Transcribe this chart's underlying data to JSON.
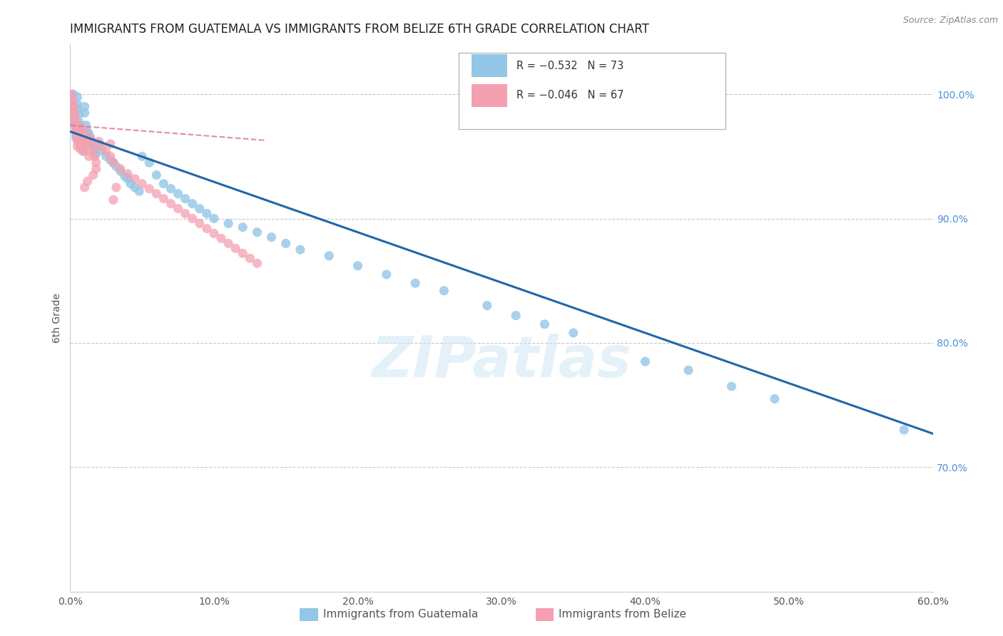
{
  "title": "IMMIGRANTS FROM GUATEMALA VS IMMIGRANTS FROM BELIZE 6TH GRADE CORRELATION CHART",
  "source": "Source: ZipAtlas.com",
  "ylabel": "6th Grade",
  "legend_blue_r": "R = −0.532",
  "legend_blue_n": "N = 73",
  "legend_pink_r": "R = −0.046",
  "legend_pink_n": "N = 67",
  "legend_blue_label": "Immigrants from Guatemala",
  "legend_pink_label": "Immigrants from Belize",
  "xlim": [
    0.0,
    0.6
  ],
  "ylim": [
    0.6,
    1.04
  ],
  "xticks": [
    0.0,
    0.1,
    0.2,
    0.3,
    0.4,
    0.5,
    0.6
  ],
  "yticks": [
    0.7,
    0.8,
    0.9,
    1.0
  ],
  "ytick_labels": [
    "70.0%",
    "80.0%",
    "90.0%",
    "100.0%"
  ],
  "xtick_labels": [
    "0.0%",
    "10.0%",
    "20.0%",
    "30.0%",
    "40.0%",
    "50.0%",
    "60.0%"
  ],
  "blue_color": "#94c6e7",
  "pink_color": "#f4a0b0",
  "blue_line_color": "#2166ac",
  "pink_line_color": "#d9728a",
  "right_tick_color": "#4a90d9",
  "watermark": "ZIPatlas",
  "blue_trend_x": [
    0.0,
    0.6
  ],
  "blue_trend_y": [
    0.97,
    0.727
  ],
  "pink_trend_x": [
    0.0,
    0.135
  ],
  "pink_trend_y": [
    0.975,
    0.963
  ],
  "blue_scatter_x": [
    0.001,
    0.002,
    0.002,
    0.003,
    0.003,
    0.003,
    0.004,
    0.004,
    0.004,
    0.005,
    0.005,
    0.005,
    0.006,
    0.006,
    0.007,
    0.007,
    0.008,
    0.008,
    0.009,
    0.009,
    0.01,
    0.01,
    0.011,
    0.012,
    0.013,
    0.014,
    0.015,
    0.016,
    0.017,
    0.018,
    0.02,
    0.022,
    0.025,
    0.028,
    0.03,
    0.032,
    0.035,
    0.038,
    0.04,
    0.042,
    0.045,
    0.048,
    0.05,
    0.055,
    0.06,
    0.065,
    0.07,
    0.075,
    0.08,
    0.085,
    0.09,
    0.095,
    0.1,
    0.11,
    0.12,
    0.13,
    0.14,
    0.15,
    0.16,
    0.18,
    0.2,
    0.22,
    0.24,
    0.26,
    0.29,
    0.31,
    0.33,
    0.35,
    0.4,
    0.43,
    0.46,
    0.49,
    0.58
  ],
  "blue_scatter_y": [
    0.995,
    1.0,
    0.99,
    0.985,
    0.98,
    0.975,
    0.972,
    0.968,
    0.965,
    0.998,
    0.992,
    0.988,
    0.984,
    0.978,
    0.975,
    0.97,
    0.968,
    0.962,
    0.958,
    0.954,
    0.99,
    0.985,
    0.975,
    0.97,
    0.968,
    0.965,
    0.962,
    0.958,
    0.955,
    0.952,
    0.96,
    0.955,
    0.95,
    0.947,
    0.945,
    0.942,
    0.938,
    0.934,
    0.932,
    0.928,
    0.925,
    0.922,
    0.95,
    0.945,
    0.935,
    0.928,
    0.924,
    0.92,
    0.916,
    0.912,
    0.908,
    0.904,
    0.9,
    0.896,
    0.893,
    0.889,
    0.885,
    0.88,
    0.875,
    0.87,
    0.862,
    0.855,
    0.848,
    0.842,
    0.83,
    0.822,
    0.815,
    0.808,
    0.785,
    0.778,
    0.765,
    0.755,
    0.73
  ],
  "pink_scatter_x": [
    0.001,
    0.001,
    0.002,
    0.002,
    0.002,
    0.003,
    0.003,
    0.003,
    0.004,
    0.004,
    0.004,
    0.005,
    0.005,
    0.005,
    0.006,
    0.006,
    0.006,
    0.007,
    0.007,
    0.007,
    0.008,
    0.008,
    0.008,
    0.009,
    0.009,
    0.01,
    0.01,
    0.011,
    0.012,
    0.013,
    0.014,
    0.015,
    0.016,
    0.017,
    0.018,
    0.02,
    0.022,
    0.025,
    0.028,
    0.03,
    0.035,
    0.04,
    0.045,
    0.05,
    0.055,
    0.06,
    0.065,
    0.07,
    0.075,
    0.08,
    0.085,
    0.09,
    0.095,
    0.1,
    0.105,
    0.11,
    0.115,
    0.12,
    0.125,
    0.13,
    0.03,
    0.028,
    0.032,
    0.018,
    0.016,
    0.012,
    0.01
  ],
  "pink_scatter_y": [
    1.0,
    0.996,
    0.993,
    0.99,
    0.988,
    0.985,
    0.982,
    0.978,
    0.975,
    0.972,
    0.969,
    0.966,
    0.962,
    0.958,
    0.975,
    0.972,
    0.968,
    0.964,
    0.96,
    0.956,
    0.972,
    0.968,
    0.964,
    0.96,
    0.955,
    0.97,
    0.965,
    0.96,
    0.955,
    0.95,
    0.965,
    0.96,
    0.955,
    0.95,
    0.945,
    0.962,
    0.958,
    0.954,
    0.95,
    0.945,
    0.94,
    0.936,
    0.932,
    0.928,
    0.924,
    0.92,
    0.916,
    0.912,
    0.908,
    0.904,
    0.9,
    0.896,
    0.892,
    0.888,
    0.884,
    0.88,
    0.876,
    0.872,
    0.868,
    0.864,
    0.915,
    0.96,
    0.925,
    0.94,
    0.935,
    0.93,
    0.925
  ]
}
